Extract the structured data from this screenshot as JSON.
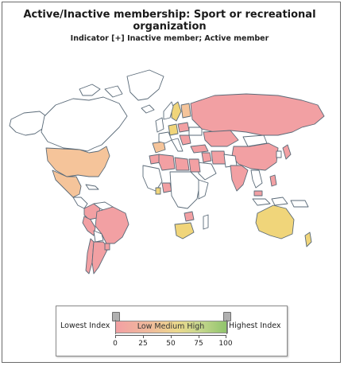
{
  "title": "Active/Inactive membership: Sport or recreational organization",
  "subtitle": "Indicator [+] Inactive member; Active member",
  "legend": {
    "lowest_label": "Lowest Index",
    "highest_label": "Highest Index",
    "gradient_text": "Low  Medium High",
    "ticks": [
      "0",
      "25",
      "50",
      "75",
      "100"
    ],
    "min_handle_value": 0,
    "max_handle_value": 100
  },
  "colors": {
    "low": "#f2a0a3",
    "low_medium": "#f5c49a",
    "medium": "#f0d57a",
    "high": "#8fc46b",
    "no_data": "#ffffff",
    "border": "#5a6a78"
  },
  "chart_data": {
    "type": "choropleth map",
    "scale": [
      0,
      100
    ],
    "regions": [
      {
        "name": "United States",
        "category": "low-medium"
      },
      {
        "name": "Mexico",
        "category": "low-medium"
      },
      {
        "name": "Colombia",
        "category": "low"
      },
      {
        "name": "Peru",
        "category": "low"
      },
      {
        "name": "Brazil",
        "category": "low"
      },
      {
        "name": "Chile",
        "category": "low"
      },
      {
        "name": "Argentina",
        "category": "low"
      },
      {
        "name": "Uruguay",
        "category": "low"
      },
      {
        "name": "Spain",
        "category": "low-medium"
      },
      {
        "name": "Sweden",
        "category": "medium"
      },
      {
        "name": "Finland",
        "category": "low-medium"
      },
      {
        "name": "Germany",
        "category": "medium"
      },
      {
        "name": "Poland",
        "category": "low"
      },
      {
        "name": "Russia",
        "category": "low"
      },
      {
        "name": "Kazakhstan",
        "category": "low"
      },
      {
        "name": "China",
        "category": "low"
      },
      {
        "name": "India",
        "category": "low"
      },
      {
        "name": "Japan",
        "category": "low"
      },
      {
        "name": "Turkey",
        "category": "low"
      },
      {
        "name": "Iran",
        "category": "low"
      },
      {
        "name": "Iraq",
        "category": "low"
      },
      {
        "name": "Egypt",
        "category": "low"
      },
      {
        "name": "Libya",
        "category": "low"
      },
      {
        "name": "Morocco",
        "category": "low"
      },
      {
        "name": "Algeria",
        "category": "low"
      },
      {
        "name": "Nigeria",
        "category": "low"
      },
      {
        "name": "Ghana",
        "category": "medium"
      },
      {
        "name": "Zimbabwe",
        "category": "low"
      },
      {
        "name": "South Africa",
        "category": "medium"
      },
      {
        "name": "Australia",
        "category": "medium"
      },
      {
        "name": "New Zealand",
        "category": "medium"
      },
      {
        "name": "Philippines",
        "category": "low"
      },
      {
        "name": "Malaysia",
        "category": "low"
      }
    ]
  }
}
